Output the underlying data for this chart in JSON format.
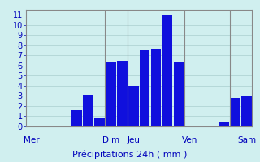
{
  "bar_values": [
    0,
    0,
    0,
    0,
    1.6,
    3.1,
    0.8,
    6.3,
    6.5,
    4.0,
    7.5,
    7.6,
    11.0,
    6.4,
    0.1,
    0,
    0,
    0.4,
    2.8,
    3.0
  ],
  "bar_color": "#1010dd",
  "background_color": "#d0efef",
  "grid_color": "#aacece",
  "xlabel": "Précipitations 24h ( mm )",
  "xlabel_color": "#0000bb",
  "tick_label_color": "#0000bb",
  "day_labels": [
    "Mer",
    "Dim",
    "Jeu",
    "Ven",
    "Sam"
  ],
  "day_positions": [
    0,
    7,
    9,
    14,
    19
  ],
  "vline_positions": [
    6.5,
    8.5,
    13.5,
    17.5
  ],
  "ylim": [
    0,
    11.5
  ],
  "yticks": [
    0,
    1,
    2,
    3,
    4,
    5,
    6,
    7,
    8,
    9,
    10,
    11
  ],
  "tick_fontsize": 7,
  "xlabel_fontsize": 8,
  "day_label_fontsize": 7.5
}
